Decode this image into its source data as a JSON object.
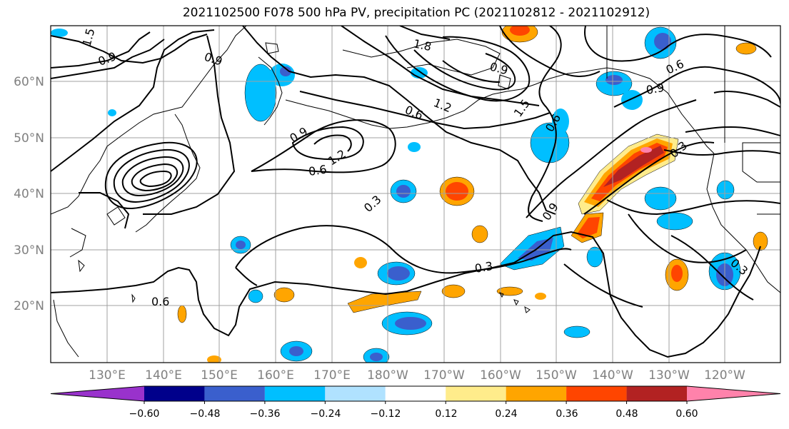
{
  "title": "2021102500 F078 500 hPa PV, precipitation PC (2021102812 - 2021102912)",
  "map": {
    "lat_labels": [
      "60°N",
      "50°N",
      "40°N",
      "30°N",
      "20°N"
    ],
    "lon_labels": [
      "130°E",
      "140°E",
      "150°E",
      "160°E",
      "170°E",
      "180°W",
      "170°W",
      "160°W",
      "150°W",
      "140°W",
      "130°W",
      "120°W"
    ],
    "contour_labels": [
      "0.9",
      "1.5",
      "0.9",
      "1.8",
      "0.9",
      "1.2",
      "1.5",
      "0.6",
      "0.6",
      "0.9",
      "0.6",
      "0.9",
      "1.2",
      "0.6",
      "0.3",
      "0.3",
      "0.9",
      "0.3",
      "0.6",
      "0.3"
    ]
  },
  "colorbar": {
    "labels": [
      "−0.60",
      "−0.48",
      "−0.36",
      "−0.24",
      "−0.12",
      "0.12",
      "0.24",
      "0.36",
      "0.48",
      "0.60"
    ],
    "colors": [
      "#9932CC",
      "#00008B",
      "#3A5FCD",
      "#00BFFF",
      "#B0E2FF",
      "#FFFFFF",
      "#FFEC8B",
      "#FFA500",
      "#FF4500",
      "#B22222",
      "#FF82AB"
    ]
  }
}
